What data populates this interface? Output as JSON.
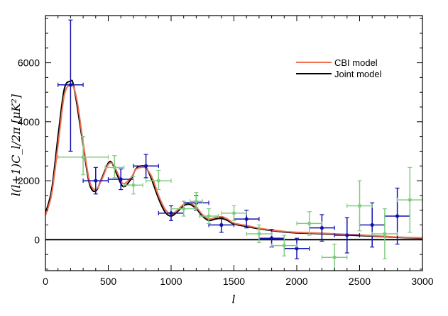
{
  "chart_data": {
    "type": "line",
    "xlabel": "l",
    "ylabel": "l(l+1)C_l/2π [μK²]",
    "xlim": [
      0,
      3000
    ],
    "ylim": [
      -1050,
      7600
    ],
    "x_ticks": [
      0,
      500,
      1000,
      1500,
      2000,
      2500,
      3000
    ],
    "y_ticks": [
      0,
      2000,
      4000,
      6000
    ],
    "x_tick_labels": [
      "0",
      "500",
      "1000",
      "1500",
      "2000",
      "2500",
      "3000"
    ],
    "y_tick_labels": [
      "0",
      "2000",
      "4000",
      "6000"
    ],
    "legend_position": "top-right",
    "zero_line": 0,
    "colors": {
      "cbi_model": "#f07050",
      "joint_model": "#000000",
      "blue_points": "#1010b0",
      "green_points": "#80cc80"
    },
    "series": [
      {
        "name": "CBI model",
        "kind": "curve",
        "x": [
          0,
          50,
          100,
          150,
          200,
          230,
          260,
          300,
          350,
          400,
          450,
          500,
          540,
          580,
          620,
          680,
          720,
          760,
          800,
          850,
          900,
          950,
          1000,
          1050,
          1100,
          1150,
          1200,
          1250,
          1300,
          1350,
          1400,
          1450,
          1500,
          1600,
          1700,
          1800,
          1900,
          2000,
          2200,
          2400,
          2600,
          2800,
          3000
        ],
        "y": [
          820,
          1550,
          3200,
          4900,
          5250,
          5100,
          4500,
          3300,
          2000,
          1700,
          2050,
          2550,
          2550,
          2200,
          1900,
          2100,
          2380,
          2450,
          2420,
          2100,
          1500,
          1050,
          870,
          1000,
          1200,
          1250,
          1100,
          850,
          700,
          750,
          780,
          700,
          560,
          480,
          390,
          330,
          280,
          250,
          220,
          180,
          140,
          90,
          60
        ]
      },
      {
        "name": "Joint model",
        "kind": "curve",
        "x": [
          0,
          50,
          100,
          150,
          200,
          220,
          250,
          300,
          350,
          400,
          450,
          500,
          530,
          570,
          620,
          680,
          720,
          760,
          800,
          840,
          900,
          950,
          1000,
          1050,
          1100,
          1150,
          1200,
          1250,
          1300,
          1350,
          1400,
          1450,
          1500,
          1600,
          1700,
          1800,
          1900,
          2000,
          2200,
          2400,
          2600,
          2800,
          3000
        ],
        "y": [
          900,
          1700,
          3500,
          5100,
          5380,
          5300,
          4600,
          3200,
          1900,
          1650,
          2100,
          2600,
          2600,
          2200,
          1800,
          2050,
          2400,
          2500,
          2450,
          2100,
          1400,
          950,
          800,
          950,
          1150,
          1200,
          1050,
          800,
          650,
          700,
          720,
          650,
          530,
          450,
          370,
          310,
          260,
          230,
          200,
          160,
          120,
          80,
          50
        ]
      },
      {
        "kind": "points",
        "color_key": "blue_points",
        "points": [
          {
            "x": 200,
            "y": 5250,
            "xerr": 100,
            "ylo": 3000,
            "yhi": 7450
          },
          {
            "x": 400,
            "y": 2000,
            "xerr": 100,
            "ylo": 1550,
            "yhi": 2450
          },
          {
            "x": 600,
            "y": 2050,
            "xerr": 100,
            "ylo": 1700,
            "yhi": 2400
          },
          {
            "x": 800,
            "y": 2500,
            "xerr": 100,
            "ylo": 2100,
            "yhi": 2900
          },
          {
            "x": 1000,
            "y": 900,
            "xerr": 100,
            "ylo": 650,
            "yhi": 1150
          },
          {
            "x": 1200,
            "y": 1250,
            "xerr": 100,
            "ylo": 1000,
            "yhi": 1500
          },
          {
            "x": 1400,
            "y": 500,
            "xerr": 100,
            "ylo": 250,
            "yhi": 750
          },
          {
            "x": 1600,
            "y": 700,
            "xerr": 100,
            "ylo": 400,
            "yhi": 1000
          },
          {
            "x": 1800,
            "y": 50,
            "xerr": 100,
            "ylo": -250,
            "yhi": 350
          },
          {
            "x": 2000,
            "y": -300,
            "xerr": 100,
            "ylo": -650,
            "yhi": 50
          },
          {
            "x": 2200,
            "y": 400,
            "xerr": 100,
            "ylo": -50,
            "yhi": 850
          },
          {
            "x": 2400,
            "y": 150,
            "xerr": 100,
            "ylo": -450,
            "yhi": 750
          },
          {
            "x": 2600,
            "y": 500,
            "xerr": 100,
            "ylo": -250,
            "yhi": 1250
          },
          {
            "x": 2800,
            "y": 800,
            "xerr": 100,
            "ylo": -150,
            "yhi": 1750
          }
        ]
      },
      {
        "kind": "points",
        "color_key": "green_points",
        "points": [
          {
            "x": 300,
            "y": 2800,
            "xerr": 200,
            "ylo": 2200,
            "yhi": 3500
          },
          {
            "x": 550,
            "y": 2450,
            "xerr": 75,
            "ylo": 2100,
            "yhi": 2850
          },
          {
            "x": 700,
            "y": 1850,
            "xerr": 75,
            "ylo": 1550,
            "yhi": 2150
          },
          {
            "x": 900,
            "y": 2000,
            "xerr": 100,
            "ylo": 1700,
            "yhi": 2350
          },
          {
            "x": 1100,
            "y": 1050,
            "xerr": 100,
            "ylo": 800,
            "yhi": 1300
          },
          {
            "x": 1200,
            "y": 1300,
            "xerr": 50,
            "ylo": 1100,
            "yhi": 1600
          },
          {
            "x": 1300,
            "y": 800,
            "xerr": 75,
            "ylo": 550,
            "yhi": 1050
          },
          {
            "x": 1500,
            "y": 900,
            "xerr": 100,
            "ylo": 650,
            "yhi": 1150
          },
          {
            "x": 1700,
            "y": 200,
            "xerr": 100,
            "ylo": -100,
            "yhi": 500
          },
          {
            "x": 1900,
            "y": -200,
            "xerr": 100,
            "ylo": -550,
            "yhi": 150
          },
          {
            "x": 2100,
            "y": 550,
            "xerr": 100,
            "ylo": 150,
            "yhi": 950
          },
          {
            "x": 2300,
            "y": -600,
            "xerr": 100,
            "ylo": -1050,
            "yhi": -150
          },
          {
            "x": 2500,
            "y": 1150,
            "xerr": 100,
            "ylo": 300,
            "yhi": 2000
          },
          {
            "x": 2700,
            "y": 200,
            "xerr": 100,
            "ylo": -650,
            "yhi": 1050
          },
          {
            "x": 2900,
            "y": 1350,
            "xerr": 100,
            "ylo": 250,
            "yhi": 2450
          }
        ]
      }
    ]
  }
}
